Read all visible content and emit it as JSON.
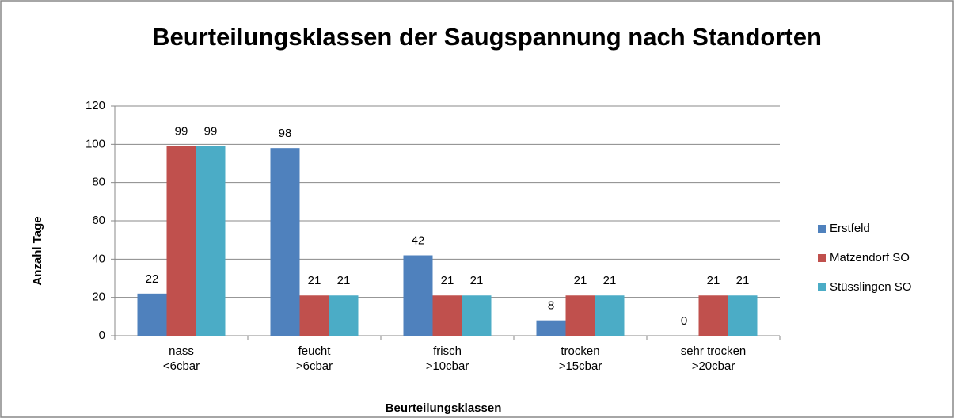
{
  "chart_data": {
    "type": "bar",
    "title": "Beurteilungsklassen der Saugspannung nach Standorten",
    "x_label": "Beurteilungsklassen",
    "y_label": "Anzahl Tage",
    "categories": [
      [
        "nass",
        "<6cbar"
      ],
      [
        "feucht",
        ">6cbar"
      ],
      [
        "frisch",
        ">10cbar"
      ],
      [
        "trocken",
        ">15cbar"
      ],
      [
        "sehr trocken",
        ">20cbar"
      ]
    ],
    "series": [
      {
        "name": "Erstfeld",
        "color": "#4f81bd",
        "values": [
          22,
          98,
          42,
          8,
          0
        ]
      },
      {
        "name": "Matzendorf SO",
        "color": "#c0504d",
        "values": [
          99,
          21,
          21,
          21,
          21
        ]
      },
      {
        "name": "Stüsslingen SO",
        "color": "#4bacc6",
        "values": [
          99,
          21,
          21,
          21,
          21
        ]
      }
    ],
    "ylim": [
      0,
      120
    ],
    "yticks": [
      0,
      20,
      40,
      60,
      80,
      100,
      120
    ],
    "grid": true,
    "legend": "right"
  }
}
